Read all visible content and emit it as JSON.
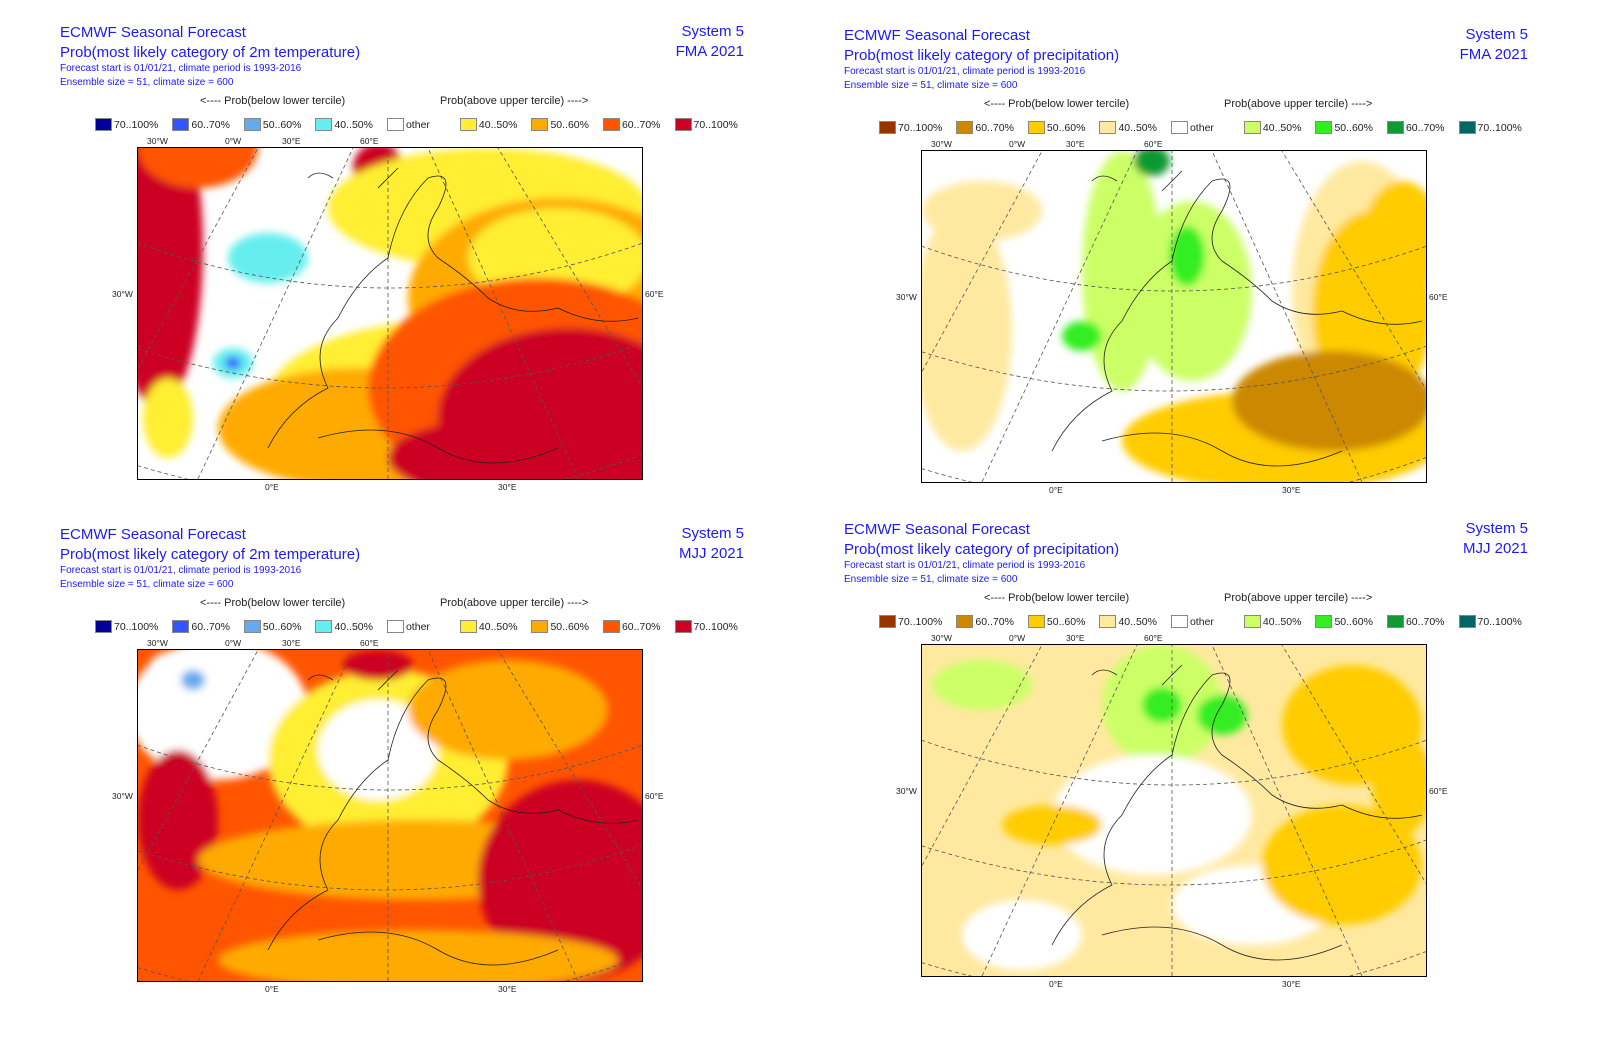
{
  "colors": {
    "temp": {
      "b70": "#000099",
      "b60": "#3355ff",
      "b50": "#66aaee",
      "b40": "#66eeee",
      "other": "#ffffff",
      "a40": "#ffee33",
      "a50": "#ffaa00",
      "a60": "#ff5500",
      "a70": "#cc0022"
    },
    "prec": {
      "b70": "#993300",
      "b60": "#cc8800",
      "b50": "#ffcc00",
      "b40": "#ffe9a0",
      "other": "#ffffff",
      "a40": "#ccff66",
      "a50": "#33ee22",
      "a60": "#119933",
      "a70": "#006666"
    },
    "title": "#1a1aff"
  },
  "panels": [
    {
      "id": "temp-fma",
      "title": "ECMWF Seasonal Forecast",
      "subtitle": "Prob(most likely category of 2m temperature)",
      "line3": "Forecast start is 01/01/21, climate period is 1993-2016",
      "line4": "Ensemble size = 51, climate size = 600",
      "system": "System 5",
      "period": "FMA 2021",
      "below_label": "<---- Prob(below lower tercile)",
      "above_label": "Prob(above upper tercile) ---->",
      "palette": "temp",
      "legend": [
        {
          "key": "b70",
          "label": "70..100%"
        },
        {
          "key": "b60",
          "label": "60..70%"
        },
        {
          "key": "b50",
          "label": "50..60%"
        },
        {
          "key": "b40",
          "label": "40..50%"
        },
        {
          "key": "other",
          "label": "other"
        },
        {
          "key": "a40",
          "label": "40..50%"
        },
        {
          "key": "a50",
          "label": "50..60%"
        },
        {
          "key": "a60",
          "label": "60..70%"
        },
        {
          "key": "a70",
          "label": "70..100%"
        }
      ]
    },
    {
      "id": "prec-fma",
      "title": "ECMWF Seasonal Forecast",
      "subtitle": "Prob(most likely category of precipitation)",
      "line3": "Forecast start is 01/01/21, climate period is 1993-2016",
      "line4": "Ensemble size = 51, climate size = 600",
      "system": "System 5",
      "period": "FMA 2021",
      "below_label": "<---- Prob(below lower tercile)",
      "above_label": "Prob(above upper tercile) ---->",
      "palette": "prec",
      "legend": [
        {
          "key": "b70",
          "label": "70..100%"
        },
        {
          "key": "b60",
          "label": "60..70%"
        },
        {
          "key": "b50",
          "label": "50..60%"
        },
        {
          "key": "b40",
          "label": "40..50%"
        },
        {
          "key": "other",
          "label": "other"
        },
        {
          "key": "a40",
          "label": "40..50%"
        },
        {
          "key": "a50",
          "label": "50..60%"
        },
        {
          "key": "a60",
          "label": "60..70%"
        },
        {
          "key": "a70",
          "label": "70..100%"
        }
      ]
    },
    {
      "id": "temp-mjj",
      "title": "ECMWF Seasonal Forecast",
      "subtitle": "Prob(most likely category of 2m temperature)",
      "line3": "Forecast start is 01/01/21, climate period is 1993-2016",
      "line4": "Ensemble size = 51, climate size = 600",
      "system": "System 5",
      "period": "MJJ 2021",
      "below_label": "<---- Prob(below lower tercile)",
      "above_label": "Prob(above upper tercile) ---->",
      "palette": "temp",
      "legend": [
        {
          "key": "b70",
          "label": "70..100%"
        },
        {
          "key": "b60",
          "label": "60..70%"
        },
        {
          "key": "b50",
          "label": "50..60%"
        },
        {
          "key": "b40",
          "label": "40..50%"
        },
        {
          "key": "other",
          "label": "other"
        },
        {
          "key": "a40",
          "label": "40..50%"
        },
        {
          "key": "a50",
          "label": "50..60%"
        },
        {
          "key": "a60",
          "label": "60..70%"
        },
        {
          "key": "a70",
          "label": "70..100%"
        }
      ]
    },
    {
      "id": "prec-mjj",
      "title": "ECMWF Seasonal Forecast",
      "subtitle": "Prob(most likely category of precipitation)",
      "line3": "Forecast start is 01/01/21, climate period is 1993-2016",
      "line4": "Ensemble size = 51, climate size = 600",
      "system": "System 5",
      "period": "MJJ 2021",
      "below_label": "<---- Prob(below lower tercile)",
      "above_label": "Prob(above upper tercile) ---->",
      "palette": "prec",
      "legend": [
        {
          "key": "b70",
          "label": "70..100%"
        },
        {
          "key": "b60",
          "label": "60..70%"
        },
        {
          "key": "b50",
          "label": "50..60%"
        },
        {
          "key": "b40",
          "label": "40..50%"
        },
        {
          "key": "other",
          "label": "other"
        },
        {
          "key": "a40",
          "label": "40..50%"
        },
        {
          "key": "a50",
          "label": "50..60%"
        },
        {
          "key": "a60",
          "label": "60..70%"
        },
        {
          "key": "a70",
          "label": "70..100%"
        }
      ]
    }
  ],
  "axes": {
    "top": [
      "30°W",
      "0°W",
      "30°E",
      "60°E"
    ],
    "left": "30°W",
    "right": "60°E",
    "bottom": [
      "0°E",
      "30°E"
    ]
  }
}
